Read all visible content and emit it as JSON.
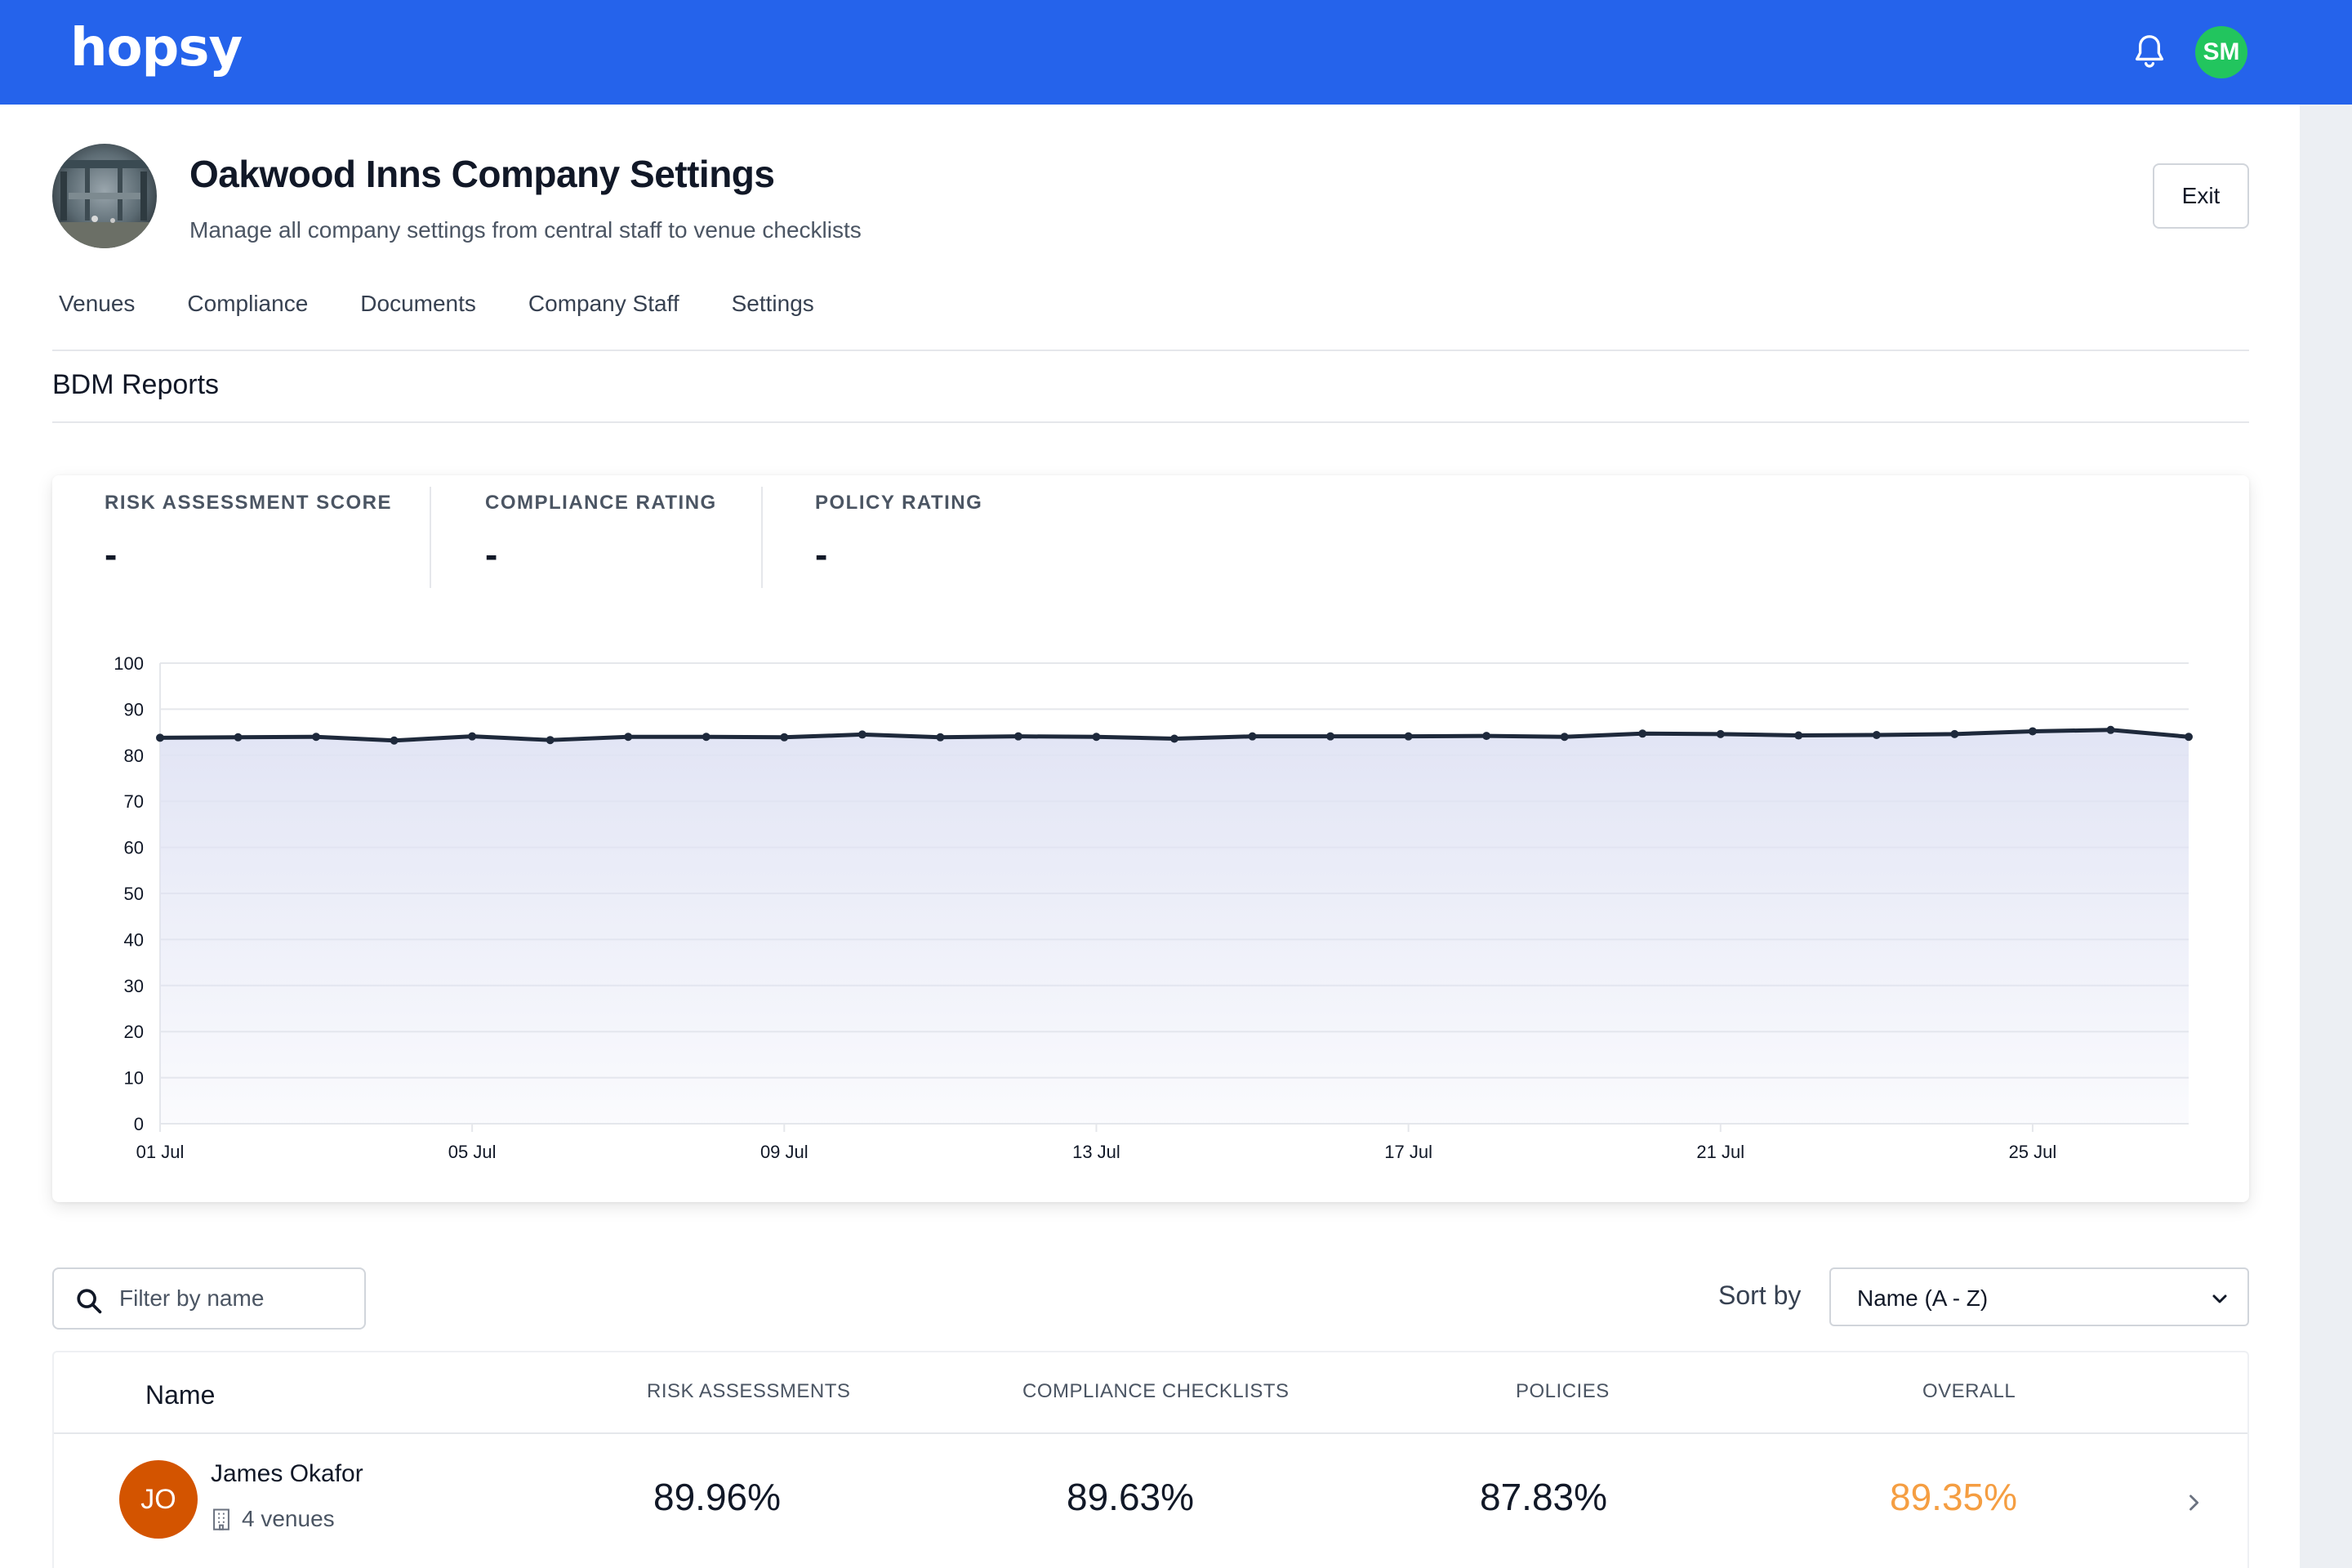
{
  "app": {
    "logo": "hopsy",
    "user_initials": "SM"
  },
  "header": {
    "title": "Oakwood Inns Company Settings",
    "subtitle": "Manage all company settings from central staff to venue checklists",
    "exit_label": "Exit"
  },
  "tabs": [
    {
      "label": "Venues"
    },
    {
      "label": "Compliance"
    },
    {
      "label": "Documents"
    },
    {
      "label": "Company Staff"
    },
    {
      "label": "Settings"
    }
  ],
  "section_title": "BDM Reports",
  "stats": [
    {
      "label": "RISK ASSESSMENT SCORE",
      "value": "-"
    },
    {
      "label": "COMPLIANCE RATING",
      "value": "-"
    },
    {
      "label": "POLICY RATING",
      "value": "-"
    }
  ],
  "chart_data": {
    "type": "area",
    "title": "",
    "xlabel": "",
    "ylabel": "",
    "ylim": [
      0,
      100
    ],
    "yticks": [
      0,
      10,
      20,
      30,
      40,
      50,
      60,
      70,
      80,
      90,
      100
    ],
    "x": [
      "01 Jul",
      "02 Jul",
      "03 Jul",
      "04 Jul",
      "05 Jul",
      "06 Jul",
      "07 Jul",
      "08 Jul",
      "09 Jul",
      "10 Jul",
      "11 Jul",
      "12 Jul",
      "13 Jul",
      "14 Jul",
      "15 Jul",
      "16 Jul",
      "17 Jul",
      "18 Jul",
      "19 Jul",
      "20 Jul",
      "21 Jul",
      "22 Jul",
      "23 Jul",
      "24 Jul",
      "25 Jul",
      "26 Jul",
      "27 Jul"
    ],
    "xtick_labels": [
      "01 Jul",
      "05 Jul",
      "09 Jul",
      "13 Jul",
      "17 Jul",
      "21 Jul",
      "25 Jul"
    ],
    "series": [
      {
        "values": [
          83.8,
          83.9,
          84.0,
          83.2,
          84.1,
          83.3,
          84.0,
          84.0,
          83.9,
          84.5,
          83.9,
          84.1,
          84.0,
          83.6,
          84.1,
          84.1,
          84.1,
          84.2,
          84.0,
          84.7,
          84.6,
          84.3,
          84.4,
          84.6,
          85.2,
          85.5,
          84.0
        ]
      }
    ],
    "grid": true,
    "legend": "none",
    "colors": {
      "line": "#1e293b",
      "fill": "#e0e3f4",
      "grid": "#e5e7eb"
    }
  },
  "filter": {
    "placeholder": "Filter by name"
  },
  "sort": {
    "label": "Sort by",
    "value": "Name (A - Z)"
  },
  "table": {
    "headers": {
      "name": "Name",
      "risk": "RISK ASSESSMENTS",
      "compliance": "COMPLIANCE CHECKLISTS",
      "policies": "POLICIES",
      "overall": "OVERALL"
    },
    "rows": [
      {
        "initials": "JO",
        "name": "James Okafor",
        "venues": "4 venues",
        "risk": "89.96%",
        "compliance": "89.63%",
        "policies": "87.83%",
        "overall": "89.35%",
        "avatar_color": "#d35400",
        "overall_color": "#f59e42"
      }
    ]
  }
}
